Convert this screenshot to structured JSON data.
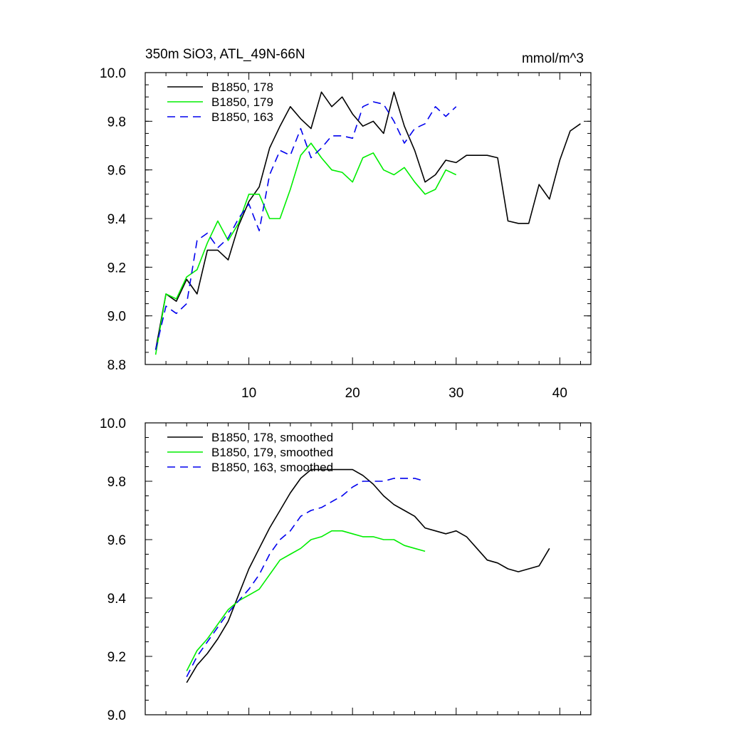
{
  "chart_data": [
    {
      "type": "line",
      "title_left": "350m SiO3, ATL_49N-66N",
      "title_right": "mmol/m^3",
      "xlabel": "",
      "ylabel": "",
      "xlim": [
        0,
        43
      ],
      "ylim": [
        8.8,
        10.0
      ],
      "xticks": [
        10,
        20,
        30,
        40
      ],
      "xtick_labels": [
        "10",
        "20",
        "30",
        "40"
      ],
      "yticks": [
        8.8,
        9.0,
        9.2,
        9.4,
        9.6,
        9.8,
        10.0
      ],
      "ytick_labels": [
        "8.8",
        "9.0",
        "9.2",
        "9.4",
        "9.6",
        "9.8",
        "10.0"
      ],
      "legend_position": "top-left",
      "series": [
        {
          "name": "B1850, 178",
          "color": "#000000",
          "dash": "solid",
          "x": [
            1,
            2,
            3,
            4,
            5,
            6,
            7,
            8,
            9,
            10,
            11,
            12,
            13,
            14,
            15,
            16,
            17,
            18,
            19,
            20,
            21,
            22,
            23,
            24,
            25,
            26,
            27,
            28,
            29,
            30,
            31,
            32,
            33,
            34,
            35,
            36,
            37,
            38,
            39,
            40,
            41,
            42
          ],
          "values": [
            8.86,
            9.09,
            9.06,
            9.15,
            9.09,
            9.27,
            9.27,
            9.23,
            9.37,
            9.47,
            9.53,
            9.69,
            9.78,
            9.86,
            9.81,
            9.77,
            9.92,
            9.86,
            9.9,
            9.83,
            9.78,
            9.8,
            9.75,
            9.92,
            9.78,
            9.68,
            9.55,
            9.58,
            9.64,
            9.63,
            9.66,
            9.66,
            9.66,
            9.65,
            9.39,
            9.38,
            9.38,
            9.54,
            9.48,
            9.64,
            9.76,
            9.79
          ]
        },
        {
          "name": "B1850, 179",
          "color": "#00ee00",
          "dash": "solid",
          "x": [
            1,
            2,
            3,
            4,
            5,
            6,
            7,
            8,
            9,
            10,
            11,
            12,
            13,
            14,
            15,
            16,
            17,
            18,
            19,
            20,
            21,
            22,
            23,
            24,
            25,
            26,
            27,
            28,
            29,
            30
          ],
          "values": [
            8.84,
            9.09,
            9.07,
            9.16,
            9.19,
            9.3,
            9.39,
            9.31,
            9.38,
            9.5,
            9.5,
            9.4,
            9.4,
            9.52,
            9.66,
            9.71,
            9.65,
            9.6,
            9.59,
            9.55,
            9.65,
            9.67,
            9.6,
            9.58,
            9.61,
            9.55,
            9.5,
            9.52,
            9.6,
            9.58
          ]
        },
        {
          "name": "B1850, 163",
          "color": "#0000ee",
          "dash": "dashed",
          "x": [
            1,
            2,
            3,
            4,
            5,
            6,
            7,
            8,
            9,
            10,
            11,
            12,
            13,
            14,
            15,
            16,
            17,
            18,
            19,
            20,
            21,
            22,
            23,
            24,
            25,
            26,
            27,
            28,
            29,
            30
          ],
          "values": [
            8.86,
            9.04,
            9.01,
            9.05,
            9.31,
            9.34,
            9.28,
            9.32,
            9.4,
            9.46,
            9.35,
            9.58,
            9.68,
            9.66,
            9.77,
            9.65,
            9.69,
            9.74,
            9.74,
            9.73,
            9.86,
            9.88,
            9.87,
            9.8,
            9.71,
            9.77,
            9.79,
            9.86,
            9.82,
            9.86
          ]
        }
      ]
    },
    {
      "type": "line",
      "xlabel": "",
      "ylabel": "",
      "xlim": [
        0,
        43
      ],
      "ylim": [
        9.0,
        10.0
      ],
      "xticks": [
        10,
        20,
        30,
        40
      ],
      "yticks": [
        9.0,
        9.2,
        9.4,
        9.6,
        9.8,
        10.0
      ],
      "ytick_labels": [
        "9.0",
        "9.2",
        "9.4",
        "9.6",
        "9.8",
        "10.0"
      ],
      "legend_position": "top-left",
      "series": [
        {
          "name": "B1850, 178, smoothed",
          "color": "#000000",
          "dash": "solid",
          "x": [
            4,
            5,
            6,
            7,
            8,
            9,
            10,
            11,
            12,
            13,
            14,
            15,
            16,
            17,
            18,
            19,
            20,
            21,
            22,
            23,
            24,
            25,
            26,
            27,
            28,
            29,
            30,
            31,
            32,
            33,
            34,
            35,
            36,
            37,
            38,
            39
          ],
          "values": [
            9.11,
            9.17,
            9.21,
            9.26,
            9.32,
            9.41,
            9.5,
            9.57,
            9.64,
            9.7,
            9.76,
            9.81,
            9.84,
            9.84,
            9.84,
            9.84,
            9.84,
            9.82,
            9.79,
            9.75,
            9.72,
            9.7,
            9.68,
            9.64,
            9.63,
            9.62,
            9.63,
            9.61,
            9.57,
            9.53,
            9.52,
            9.5,
            9.49,
            9.5,
            9.51,
            9.57
          ]
        },
        {
          "name": "B1850, 179, smoothed",
          "color": "#00ee00",
          "dash": "solid",
          "x": [
            4,
            5,
            6,
            7,
            8,
            9,
            10,
            11,
            12,
            13,
            14,
            15,
            16,
            17,
            18,
            19,
            20,
            21,
            22,
            23,
            24,
            25,
            26,
            27
          ],
          "values": [
            9.15,
            9.22,
            9.26,
            9.31,
            9.36,
            9.39,
            9.41,
            9.43,
            9.48,
            9.53,
            9.55,
            9.57,
            9.6,
            9.61,
            9.63,
            9.63,
            9.62,
            9.61,
            9.61,
            9.6,
            9.6,
            9.58,
            9.57,
            9.56
          ]
        },
        {
          "name": "B1850, 163, smoothed",
          "color": "#0000ee",
          "dash": "dashed",
          "x": [
            4,
            5,
            6,
            7,
            8,
            9,
            10,
            11,
            12,
            13,
            14,
            15,
            16,
            17,
            18,
            19,
            20,
            21,
            22,
            23,
            24,
            25,
            26,
            27
          ],
          "values": [
            9.13,
            9.2,
            9.25,
            9.3,
            9.35,
            9.39,
            9.43,
            9.48,
            9.55,
            9.6,
            9.63,
            9.68,
            9.7,
            9.71,
            9.73,
            9.75,
            9.78,
            9.8,
            9.8,
            9.8,
            9.81,
            9.81,
            9.81,
            9.8
          ]
        }
      ]
    }
  ]
}
